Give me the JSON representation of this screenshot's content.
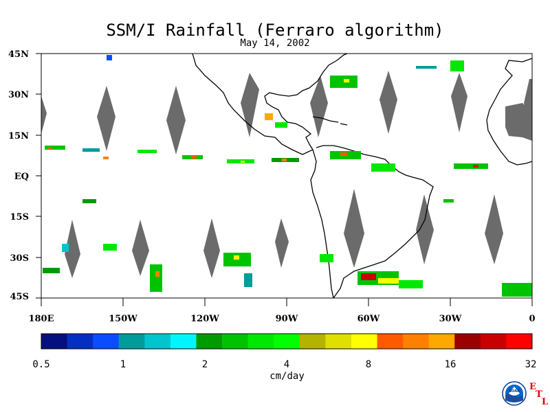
{
  "title": "SSM/I Rainfall (Ferraro algorithm)",
  "date": "May 14, 2002",
  "map": {
    "lat_labels": [
      "45N",
      "30N",
      "15N",
      "EQ",
      "15S",
      "30S",
      "45S"
    ],
    "lat_values": [
      45,
      30,
      15,
      0,
      -15,
      -30,
      -45
    ],
    "lon_labels": [
      "180E",
      "150W",
      "120W",
      "90W",
      "60W",
      "30W",
      "0"
    ],
    "lon_values": [
      -180,
      -150,
      -120,
      -90,
      -60,
      -30,
      0
    ],
    "extent": {
      "lon": [
        -180,
        0
      ],
      "lat": [
        -45,
        45
      ]
    },
    "colors": {
      "no_data_gap": "#6b6b6b",
      "coastline": "#000000"
    }
  },
  "colorbar": {
    "units": "cm/day",
    "tick_labels": [
      "0.5",
      "1",
      "2",
      "4",
      "8",
      "16",
      "32"
    ],
    "colors": [
      "#03107e",
      "#0330c0",
      "#0b4dfe",
      "#009b9b",
      "#00c5cf",
      "#00f6ff",
      "#009b00",
      "#00c300",
      "#00e800",
      "#00ff00",
      "#b3b300",
      "#dfdf00",
      "#ffff00",
      "#ff5a00",
      "#ff8000",
      "#ffa800",
      "#9b0000",
      "#ca0000",
      "#ff0000"
    ]
  },
  "logo": {
    "noaa_text": "NOAA",
    "etl_letters": [
      "E",
      "T",
      "L"
    ]
  }
}
